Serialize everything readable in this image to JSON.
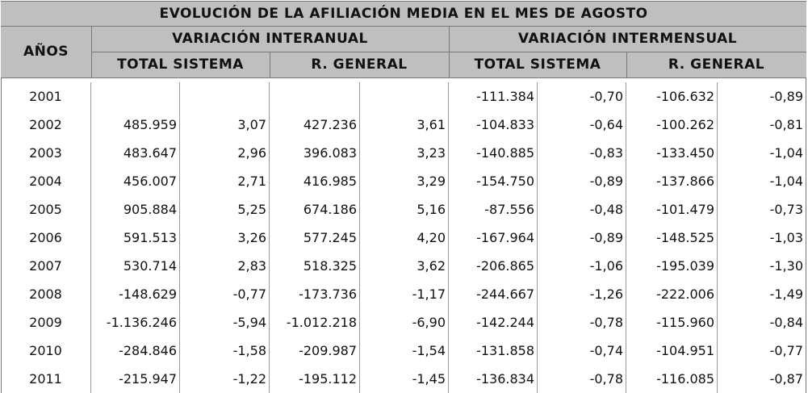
{
  "header": {
    "title": "EVOLUCIÓN DE LA AFILIACIÓN MEDIA EN EL MES DE AGOSTO",
    "years_label": "AÑOS",
    "groups": [
      {
        "label": "VARIACIÓN INTERANUAL",
        "columns": [
          "TOTAL SISTEMA",
          "R. GENERAL"
        ]
      },
      {
        "label": "VARIACIÓN INTERMENSUAL",
        "columns": [
          "TOTAL SISTEMA",
          "R. GENERAL"
        ]
      }
    ]
  },
  "table": {
    "rows": [
      [
        "2001",
        null,
        null,
        null,
        null,
        "-111.384",
        "-0,70",
        "-106.632",
        "-0,89"
      ],
      [
        "2002",
        "485.959",
        "3,07",
        "427.236",
        "3,61",
        "-104.833",
        "-0,64",
        "-100.262",
        "-0,81"
      ],
      [
        "2003",
        "483.647",
        "2,96",
        "396.083",
        "3,23",
        "-140.885",
        "-0,83",
        "-133.450",
        "-1,04"
      ],
      [
        "2004",
        "456.007",
        "2,71",
        "416.985",
        "3,29",
        "-154.750",
        "-0,89",
        "-137.866",
        "-1,04"
      ],
      [
        "2005",
        "905.884",
        "5,25",
        "674.186",
        "5,16",
        "-87.556",
        "-0,48",
        "-101.479",
        "-0,73"
      ],
      [
        "2006",
        "591.513",
        "3,26",
        "577.245",
        "4,20",
        "-167.964",
        "-0,89",
        "-148.525",
        "-1,03"
      ],
      [
        "2007",
        "530.714",
        "2,83",
        "518.325",
        "3,62",
        "-206.865",
        "-1,06",
        "-195.039",
        "-1,30"
      ],
      [
        "2008",
        "-148.629",
        "-0,77",
        "-173.736",
        "-1,17",
        "-244.667",
        "-1,26",
        "-222.006",
        "-1,49"
      ],
      [
        "2009",
        "-1.136.246",
        "-5,94",
        "-1.012.218",
        "-6,90",
        "-142.244",
        "-0,78",
        "-115.960",
        "-0,84"
      ],
      [
        "2010",
        "-284.846",
        "-1,58",
        "-209.987",
        "-1,54",
        "-131.858",
        "-0,74",
        "-104.951",
        "-0,77"
      ],
      [
        "2011",
        "-215.947",
        "-1,22",
        "-195.112",
        "-1,45",
        "-136.834",
        "-0,78",
        "-116.085",
        "-0,87"
      ]
    ]
  }
}
